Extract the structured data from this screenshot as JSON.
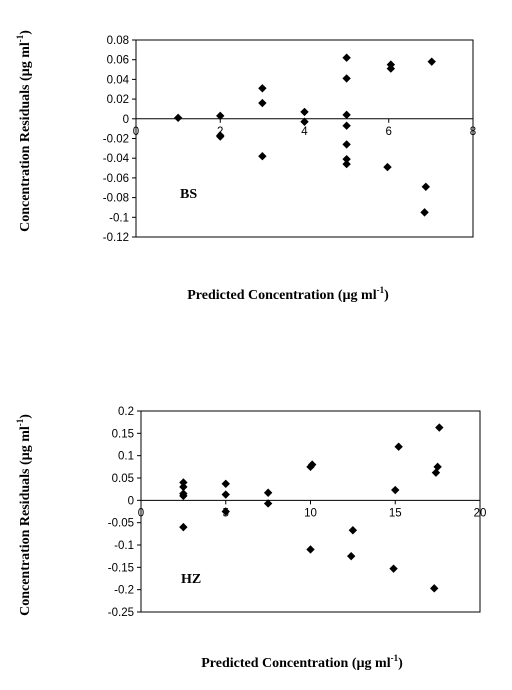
{
  "chart_data": [
    {
      "type": "scatter",
      "xlabel": "Predicted Concentration (µg ml",
      "xlabel_sup": "-1",
      "xlabel_end": ")",
      "ylabel": "Concentration Residuals (µg ml",
      "ylabel_sup": "-1",
      "ylabel_end": ")",
      "annotation": "BS",
      "xlim": [
        0,
        8
      ],
      "ylim": [
        -0.12,
        0.08
      ],
      "x_ticks": [
        0,
        2,
        4,
        6,
        8
      ],
      "y_ticks": [
        0.08,
        0.06,
        0.04,
        0.02,
        0,
        -0.02,
        -0.04,
        -0.06,
        -0.08,
        -0.1,
        -0.12
      ],
      "x_tick_labels": [
        "0",
        "2",
        "4",
        "6",
        "8"
      ],
      "y_tick_labels": [
        "0.08",
        "0.06",
        "0.04",
        "0.02",
        "0",
        "-0.02",
        "-0.04",
        "-0.06",
        "-0.08",
        "-0.1",
        "-0.12"
      ],
      "grid": false,
      "marker_color": "#000000",
      "series": [
        {
          "points": [
            [
              1,
              0.001
            ],
            [
              2,
              0.003
            ],
            [
              2,
              -0.017
            ],
            [
              2,
              -0.018
            ],
            [
              3,
              0.031
            ],
            [
              3,
              0.016
            ],
            [
              3,
              -0.038
            ],
            [
              4,
              0.007
            ],
            [
              4,
              -0.003
            ],
            [
              5,
              0.062
            ],
            [
              5,
              0.041
            ],
            [
              5,
              0.004
            ],
            [
              5,
              -0.007
            ],
            [
              5,
              -0.026
            ],
            [
              5,
              -0.041
            ],
            [
              5,
              -0.046
            ],
            [
              5.97,
              -0.049
            ],
            [
              6.05,
              0.055
            ],
            [
              6.05,
              0.051
            ],
            [
              6.88,
              -0.069
            ],
            [
              6.85,
              -0.095
            ],
            [
              7.02,
              0.058
            ]
          ]
        }
      ]
    },
    {
      "type": "scatter",
      "xlabel": "Predicted Concentration (µg ml",
      "xlabel_sup": "-1",
      "xlabel_end": ")",
      "ylabel": "Concentration Residuals (µg ml",
      "ylabel_sup": "-1",
      "ylabel_end": ")",
      "annotation": "HZ",
      "xlim": [
        0,
        20
      ],
      "ylim": [
        -0.25,
        0.2
      ],
      "x_ticks": [
        0,
        5,
        10,
        15,
        20
      ],
      "y_ticks": [
        0.2,
        0.15,
        0.1,
        0.05,
        0,
        -0.05,
        -0.1,
        -0.15,
        -0.2,
        -0.25
      ],
      "x_tick_labels": [
        "0",
        "5",
        "10",
        "15",
        "20"
      ],
      "y_tick_labels": [
        "0.2",
        "0.15",
        "0.1",
        "0.05",
        "0",
        "-0.05",
        "-0.1",
        "-0.15",
        "-0.2",
        "-0.25"
      ],
      "grid": false,
      "marker_color": "#000000",
      "series": [
        {
          "points": [
            [
              2.5,
              0.04
            ],
            [
              2.5,
              0.03
            ],
            [
              2.5,
              0.015
            ],
            [
              2.5,
              0.01
            ],
            [
              2.5,
              -0.06
            ],
            [
              5,
              0.037
            ],
            [
              5,
              0.013
            ],
            [
              5,
              -0.025
            ],
            [
              7.5,
              0.017
            ],
            [
              7.5,
              -0.007
            ],
            [
              10,
              0.075
            ],
            [
              10.1,
              0.08
            ],
            [
              10,
              -0.11
            ],
            [
              12.5,
              -0.067
            ],
            [
              12.4,
              -0.125
            ],
            [
              15,
              0.023
            ],
            [
              15.2,
              0.12
            ],
            [
              14.9,
              -0.153
            ],
            [
              17.5,
              0.075
            ],
            [
              17.4,
              0.062
            ],
            [
              17.6,
              0.163
            ],
            [
              17.3,
              -0.197
            ]
          ]
        }
      ]
    }
  ]
}
